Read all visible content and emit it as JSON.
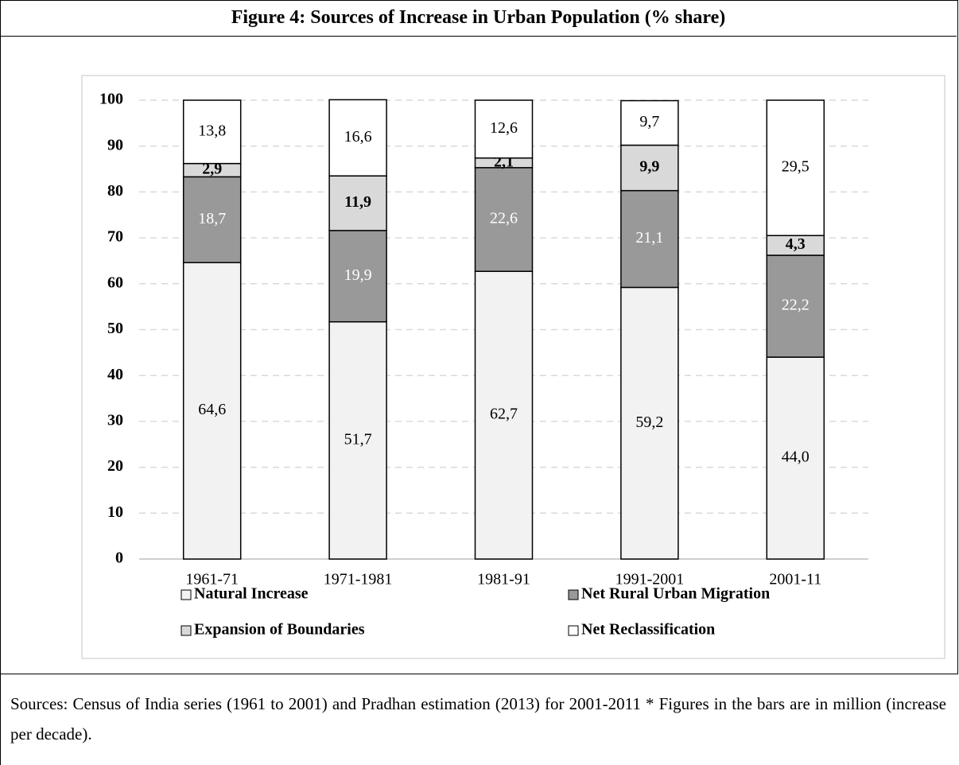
{
  "chart_data": {
    "type": "stacked_bar",
    "title": "Figure 4: Sources of Increase in Urban Population (% share)",
    "categories": [
      "1961-71",
      "1971-1981",
      "1981-91",
      "1991-2001",
      "2001-11"
    ],
    "series": [
      {
        "name": "Natural Increase",
        "color": "#f2f2f2",
        "values": [
          64.6,
          51.7,
          62.7,
          59.2,
          44.0
        ],
        "value_labels": [
          "64,6",
          "51,7",
          "62,7",
          "59,2",
          "44,0"
        ]
      },
      {
        "name": "Net Rural Urban Migration",
        "color": "#999999",
        "values": [
          18.7,
          19.9,
          22.6,
          21.1,
          22.2
        ],
        "value_labels": [
          "18,7",
          "19,9",
          "22,6",
          "21,1",
          "22,2"
        ]
      },
      {
        "name": "Expansion of Boundaries",
        "color": "#d9d9d9",
        "values": [
          2.9,
          11.9,
          2.1,
          9.9,
          4.3
        ],
        "value_labels": [
          "2,9",
          "11,9",
          "2,1",
          "9,9",
          "4,3"
        ]
      },
      {
        "name": "Net Reclassification",
        "color": "#ffffff",
        "values": [
          13.8,
          16.6,
          12.6,
          9.7,
          29.5
        ],
        "value_labels": [
          "13,8",
          "16,6",
          "12,6",
          "9,7",
          "29,5"
        ]
      }
    ],
    "ylim": [
      0,
      100
    ],
    "yticks": [
      0,
      10,
      20,
      30,
      40,
      50,
      60,
      70,
      80,
      90,
      100
    ],
    "grid": true,
    "legend": "bottom",
    "note": "Sources: Census of India series (1961 to 2001) and Pradhan estimation (2013) for 2001-2011 * Figures in the bars are in million (increase per decade)."
  }
}
